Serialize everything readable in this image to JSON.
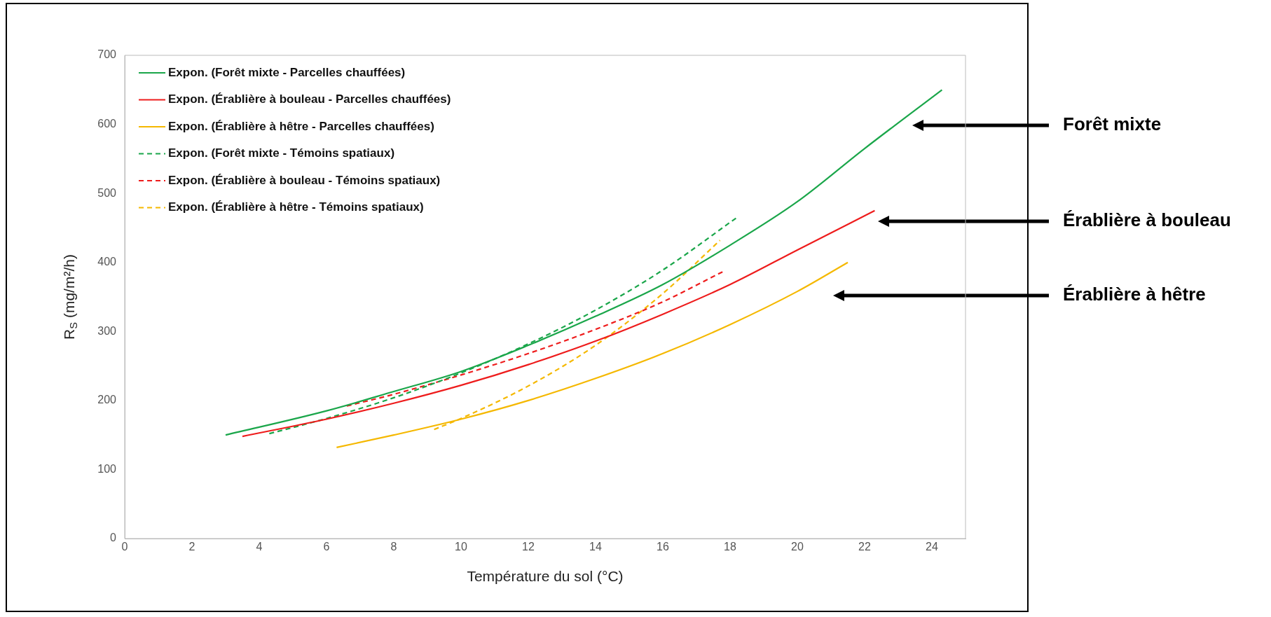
{
  "chart_data": {
    "type": "line",
    "xlabel": "Température du sol (°C)",
    "ylabel": "R$_{S}$ (mg/m²/h)",
    "xlim": [
      0,
      25
    ],
    "xticks": [
      0,
      2,
      4,
      6,
      8,
      10,
      12,
      14,
      16,
      18,
      20,
      22,
      24
    ],
    "ylim": [
      0,
      700
    ],
    "yticks": [
      0,
      100,
      200,
      300,
      400,
      500,
      600,
      700
    ],
    "grid": false,
    "legend": "top left",
    "marker": "none",
    "series": [
      {
        "name": "Expon. (Forêt mixte - Parcelles chauffées)",
        "color": "#1aa64a",
        "line_style": "solid",
        "x": [
          3,
          6,
          8,
          10,
          12,
          14,
          16,
          18,
          20,
          22,
          24.3
        ],
        "values": [
          150,
          185,
          213,
          242,
          280,
          322,
          368,
          425,
          488,
          565,
          650
        ]
      },
      {
        "name": "Expon. (Érablière à bouleau - Parcelles chauffées)",
        "color": "#ee1c1c",
        "line_style": "solid",
        "x": [
          3.5,
          6,
          8,
          10,
          12,
          14,
          16,
          18,
          20,
          22.3
        ],
        "values": [
          148,
          173,
          196,
          222,
          252,
          286,
          325,
          368,
          418,
          475
        ]
      },
      {
        "name": "Expon. (Érablière à hêtre - Parcelles chauffées)",
        "color": "#f5b800",
        "line_style": "solid",
        "x": [
          6.3,
          8,
          10,
          12,
          14,
          16,
          18,
          20,
          21.5
        ],
        "values": [
          132,
          150,
          173,
          200,
          232,
          268,
          310,
          358,
          400
        ]
      },
      {
        "name": "Expon. (Forêt mixte - Témoins spatiaux)",
        "color": "#1aa64a",
        "line_style": "dashed",
        "x": [
          4.3,
          6,
          8,
          10,
          12,
          14,
          16,
          18.2
        ],
        "values": [
          152,
          174,
          204,
          240,
          282,
          331,
          389,
          465
        ]
      },
      {
        "name": "Expon. (Érablière à bouleau - Témoins spatiaux)",
        "color": "#ee1c1c",
        "line_style": "dashed",
        "x": [
          6.6,
          8,
          10,
          12,
          14,
          16,
          17.8
        ],
        "values": [
          192,
          209,
          237,
          268,
          303,
          343,
          387
        ]
      },
      {
        "name": "Expon. (Érablière à hêtre - Témoins spatiaux)",
        "color": "#f5b800",
        "line_style": "dashed",
        "x": [
          9.2,
          10,
          12,
          14,
          16,
          17.7
        ],
        "values": [
          158,
          174,
          221,
          280,
          355,
          432
        ]
      }
    ],
    "annotations": [
      "Forêt mixte",
      "Érablière à bouleau",
      "Érablière à hêtre"
    ]
  }
}
